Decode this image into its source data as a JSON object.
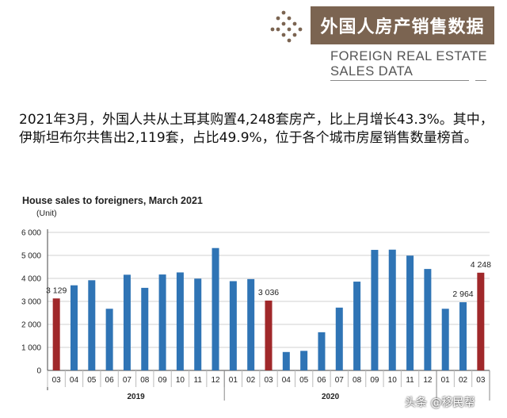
{
  "header": {
    "banner": "外国人房产销售数据",
    "subtitle_line1": "FOREIGN REAL ESTATE",
    "subtitle_line2": "SALES DATA"
  },
  "paragraph": "2021年3月，外国人共从土耳其购置4,248套房产，比上月增长43.3%。其中，伊斯坦布尔共售出2,119套，占比49.9%，位于各个城市房屋销售数量榜首。",
  "watermark": "头条 @移民帮",
  "colors": {
    "bar_default": "#2f74b5",
    "bar_highlight": "#a0282a",
    "banner": "#7b6451"
  },
  "chart_data": {
    "type": "bar",
    "title": "House sales to foreigners, March 2021",
    "ylabel": "(Unit)",
    "ylim": [
      0,
      6000
    ],
    "yticks": [
      "0",
      "1 000",
      "2 000",
      "3 000",
      "4 000",
      "5 000",
      "6 000"
    ],
    "grid": true,
    "categories": [
      "03",
      "04",
      "05",
      "06",
      "07",
      "08",
      "09",
      "10",
      "11",
      "12",
      "01",
      "02",
      "03",
      "04",
      "05",
      "06",
      "07",
      "08",
      "09",
      "10",
      "11",
      "12",
      "01",
      "02",
      "03"
    ],
    "year_groups": [
      {
        "label": "2019",
        "start": 0,
        "end": 9
      },
      {
        "label": "2020",
        "start": 10,
        "end": 21
      },
      {
        "label": "",
        "start": 22,
        "end": 24
      }
    ],
    "values": [
      3129,
      3700,
      3920,
      2680,
      4160,
      3590,
      4170,
      4260,
      3990,
      5320,
      3880,
      3970,
      3036,
      800,
      850,
      1660,
      2730,
      3860,
      5240,
      5250,
      4990,
      4410,
      2680,
      2964,
      4248
    ],
    "highlighted": [
      0,
      12,
      24
    ],
    "data_labels": {
      "0": "3 129",
      "12": "3 036",
      "23": "2 964",
      "24": "4 248"
    }
  }
}
